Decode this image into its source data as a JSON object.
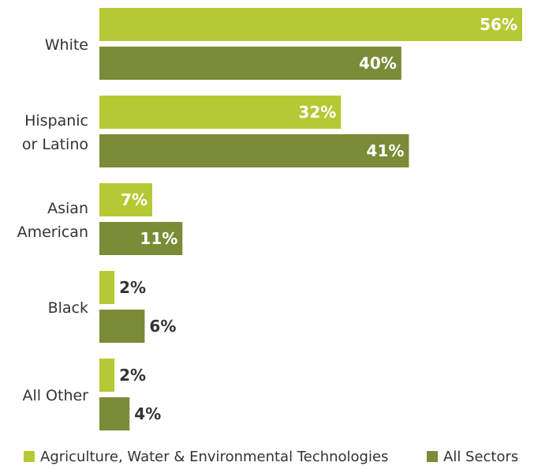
{
  "chart_data": {
    "type": "bar",
    "orientation": "horizontal",
    "categories": [
      "White",
      "Hispanic or Latino",
      "Asian American",
      "Black",
      "All Other"
    ],
    "category_lines": [
      [
        "White"
      ],
      [
        "Hispanic",
        "or Latino"
      ],
      [
        "Asian",
        "American"
      ],
      [
        "Black"
      ],
      [
        "All Other"
      ]
    ],
    "series": [
      {
        "name": "Agriculture, Water & Environmental Technologies",
        "values": [
          56,
          32,
          7,
          2,
          2
        ],
        "color": "#b5c935"
      },
      {
        "name": "All Sectors",
        "values": [
          40,
          41,
          11,
          6,
          4
        ],
        "color": "#7a8c37"
      }
    ],
    "value_labels": [
      [
        "56%",
        "32%",
        "7%",
        "2%",
        "2%"
      ],
      [
        "40%",
        "41%",
        "11%",
        "6%",
        "4%"
      ]
    ],
    "xlim": [
      0,
      56
    ],
    "grid": false,
    "legend_position": "bottom",
    "label_inside_color": "#ffffff",
    "label_outside_color": "#333333"
  }
}
